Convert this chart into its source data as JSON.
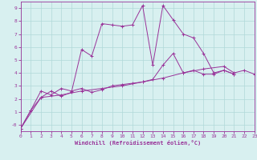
{
  "xlabel": "Windchill (Refroidissement éolien,°C)",
  "bg_color": "#d8f0f0",
  "grid_color": "#b0d8d8",
  "line_color": "#993399",
  "xlim": [
    0,
    23
  ],
  "ylim": [
    -0.5,
    9.5
  ],
  "xticks": [
    0,
    1,
    2,
    3,
    4,
    5,
    6,
    7,
    8,
    9,
    10,
    11,
    12,
    13,
    14,
    15,
    16,
    17,
    18,
    19,
    20,
    21,
    22,
    23
  ],
  "yticks": [
    0,
    1,
    2,
    3,
    4,
    5,
    6,
    7,
    8,
    9
  ],
  "series1": [
    [
      0,
      -0.3
    ],
    [
      1,
      1.1
    ],
    [
      2,
      2.1
    ],
    [
      3,
      2.6
    ],
    [
      4,
      2.2
    ],
    [
      5,
      2.5
    ],
    [
      6,
      5.8
    ],
    [
      7,
      5.3
    ],
    [
      8,
      7.8
    ],
    [
      9,
      7.7
    ],
    [
      10,
      7.6
    ],
    [
      11,
      7.7
    ],
    [
      12,
      9.2
    ],
    [
      13,
      4.6
    ],
    [
      14,
      9.2
    ],
    [
      15,
      8.1
    ],
    [
      16,
      7.0
    ],
    [
      17,
      6.7
    ],
    [
      18,
      5.5
    ],
    [
      19,
      4.0
    ],
    [
      20,
      4.2
    ],
    [
      21,
      3.9
    ]
  ],
  "series2": [
    [
      0,
      -0.3
    ],
    [
      1,
      1.1
    ],
    [
      2,
      2.6
    ],
    [
      3,
      2.3
    ],
    [
      4,
      2.8
    ],
    [
      5,
      2.6
    ],
    [
      6,
      2.8
    ],
    [
      7,
      2.5
    ],
    [
      8,
      2.7
    ],
    [
      9,
      3.0
    ],
    [
      10,
      3.1
    ],
    [
      11,
      3.2
    ],
    [
      12,
      3.3
    ],
    [
      13,
      3.5
    ],
    [
      14,
      4.6
    ],
    [
      15,
      5.5
    ],
    [
      16,
      4.0
    ],
    [
      17,
      4.2
    ],
    [
      18,
      3.9
    ],
    [
      19,
      3.9
    ],
    [
      20,
      4.2
    ],
    [
      21,
      3.9
    ]
  ],
  "series3": [
    [
      0,
      -0.3
    ],
    [
      2,
      2.1
    ],
    [
      4,
      2.3
    ],
    [
      6,
      2.6
    ],
    [
      8,
      2.8
    ],
    [
      10,
      3.0
    ],
    [
      12,
      3.3
    ],
    [
      14,
      3.6
    ],
    [
      16,
      4.0
    ],
    [
      18,
      4.3
    ],
    [
      20,
      4.5
    ],
    [
      21,
      4.0
    ],
    [
      22,
      4.2
    ],
    [
      23,
      3.9
    ]
  ]
}
